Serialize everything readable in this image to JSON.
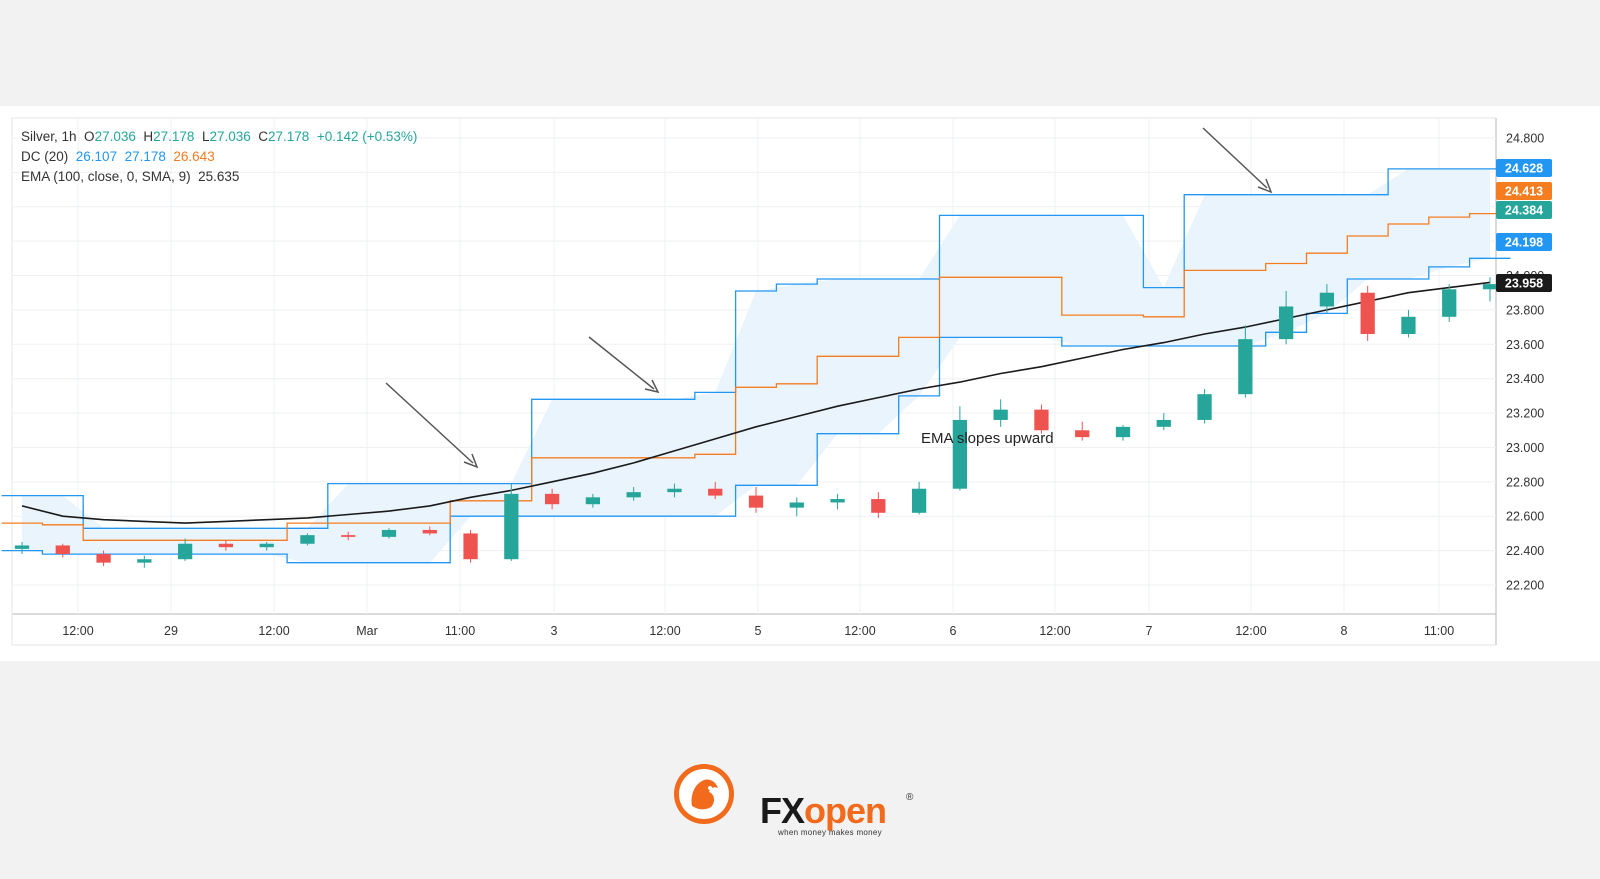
{
  "legend": {
    "symbol": "Silver, 1h",
    "o_label": "O",
    "o": "27.036",
    "h_label": "H",
    "h": "27.178",
    "l_label": "L",
    "l": "27.036",
    "c_label": "C",
    "c": "27.178",
    "change": "+0.142 (+0.53%)",
    "dc_label": "DC (20)",
    "dc_lower": "26.107",
    "dc_upper": "27.178",
    "dc_basis": "26.643",
    "ema_label": "EMA (100, close, 0, SMA, 9)",
    "ema_value": "25.635"
  },
  "annotation": "EMA slopes upward",
  "logo": {
    "brand_fx": "FX",
    "brand_open": "open",
    "tagline": "when money makes money",
    "reg": "®"
  },
  "colors": {
    "up": "#26a69a",
    "down": "#ef5350",
    "channel": "#2196f3",
    "basis": "#f57c1f",
    "ema": "#1a1a1a",
    "fill": "#eaf4fc"
  },
  "chart_data": {
    "type": "candlestick",
    "y_ticks": [
      "24.800",
      "24.600",
      "24.400",
      "24.200",
      "24.000",
      "23.800",
      "23.600",
      "23.400",
      "23.200",
      "23.000",
      "22.800",
      "22.600",
      "22.400",
      "22.200"
    ],
    "ylim": [
      22.0,
      24.8
    ],
    "x_ticks": [
      "12:00",
      "29",
      "12:00",
      "Mar",
      "11:00",
      "3",
      "12:00",
      "5",
      "12:00",
      "6",
      "12:00",
      "7",
      "12:00",
      "8",
      "11:00"
    ],
    "price_labels": [
      {
        "text": "24.628",
        "color": "#2196f3",
        "value": 24.628
      },
      {
        "text": "24.413",
        "color": "#f57c1f",
        "value": 24.413
      },
      {
        "text": "24.384",
        "color": "#26a69a",
        "value": 24.384
      },
      {
        "text": "24.198",
        "color": "#2196f3",
        "value": 24.198
      },
      {
        "text": "23.958",
        "color": "#1a1a1a",
        "value": 23.958
      }
    ],
    "dc_upper": [
      22.72,
      22.72,
      22.53,
      22.53,
      22.53,
      22.53,
      22.53,
      22.53,
      22.79,
      22.79,
      22.79,
      22.79,
      22.79,
      23.28,
      23.28,
      23.28,
      23.28,
      23.32,
      23.91,
      23.95,
      23.98,
      23.98,
      23.98,
      24.35,
      24.35,
      24.35,
      24.35,
      24.35,
      23.93,
      24.47,
      24.47,
      24.47,
      24.47,
      24.47,
      24.62,
      24.62,
      24.62
    ],
    "dc_lower": [
      22.4,
      22.38,
      22.38,
      22.38,
      22.38,
      22.38,
      22.38,
      22.33,
      22.33,
      22.33,
      22.33,
      22.6,
      22.6,
      22.6,
      22.6,
      22.6,
      22.6,
      22.6,
      22.78,
      22.78,
      23.08,
      23.08,
      23.3,
      23.64,
      23.64,
      23.64,
      23.59,
      23.59,
      23.59,
      23.59,
      23.59,
      23.67,
      23.78,
      23.98,
      23.98,
      24.05,
      24.1
    ],
    "dc_basis": [
      22.56,
      22.55,
      22.46,
      22.46,
      22.46,
      22.46,
      22.46,
      22.56,
      22.56,
      22.56,
      22.56,
      22.69,
      22.69,
      22.94,
      22.94,
      22.94,
      22.94,
      22.96,
      23.35,
      23.37,
      23.53,
      23.53,
      23.64,
      23.99,
      23.99,
      23.99,
      23.77,
      23.77,
      23.76,
      24.03,
      24.03,
      24.07,
      24.13,
      24.23,
      24.3,
      24.34,
      24.36
    ],
    "ema": [
      22.66,
      22.6,
      22.58,
      22.57,
      22.56,
      22.57,
      22.58,
      22.59,
      22.61,
      22.63,
      22.66,
      22.71,
      22.75,
      22.8,
      22.85,
      22.91,
      22.98,
      23.05,
      23.12,
      23.18,
      23.24,
      23.29,
      23.34,
      23.38,
      23.43,
      23.47,
      23.52,
      23.57,
      23.61,
      23.66,
      23.7,
      23.75,
      23.8,
      23.85,
      23.9,
      23.93,
      23.96
    ],
    "candles": [
      [
        22.41,
        22.45,
        22.38,
        22.43
      ],
      [
        22.43,
        22.44,
        22.36,
        22.38
      ],
      [
        22.38,
        22.4,
        22.31,
        22.33
      ],
      [
        22.33,
        22.37,
        22.3,
        22.35
      ],
      [
        22.35,
        22.47,
        22.34,
        22.44
      ],
      [
        22.44,
        22.46,
        22.4,
        22.42
      ],
      [
        22.42,
        22.45,
        22.4,
        22.44
      ],
      [
        22.44,
        22.5,
        22.43,
        22.49
      ],
      [
        22.49,
        22.51,
        22.46,
        22.48
      ],
      [
        22.48,
        22.53,
        22.47,
        22.52
      ],
      [
        22.52,
        22.54,
        22.49,
        22.5
      ],
      [
        22.5,
        22.52,
        22.33,
        22.35
      ],
      [
        22.35,
        22.79,
        22.34,
        22.73
      ],
      [
        22.73,
        22.76,
        22.64,
        22.67
      ],
      [
        22.67,
        22.73,
        22.65,
        22.71
      ],
      [
        22.71,
        22.77,
        22.69,
        22.74
      ],
      [
        22.74,
        22.79,
        22.71,
        22.76
      ],
      [
        22.76,
        22.8,
        22.7,
        22.72
      ],
      [
        22.72,
        22.77,
        22.62,
        22.65
      ],
      [
        22.65,
        22.71,
        22.6,
        22.68
      ],
      [
        22.68,
        22.73,
        22.64,
        22.7
      ],
      [
        22.7,
        22.74,
        22.59,
        22.62
      ],
      [
        22.62,
        22.8,
        22.61,
        22.76
      ],
      [
        22.76,
        23.24,
        22.75,
        23.16
      ],
      [
        23.16,
        23.28,
        23.12,
        23.22
      ],
      [
        23.22,
        23.25,
        23.08,
        23.1
      ],
      [
        23.1,
        23.15,
        23.04,
        23.06
      ],
      [
        23.06,
        23.13,
        23.04,
        23.12
      ],
      [
        23.12,
        23.2,
        23.1,
        23.16
      ],
      [
        23.16,
        23.34,
        23.14,
        23.31
      ],
      [
        23.31,
        23.71,
        23.29,
        23.63
      ],
      [
        23.63,
        23.91,
        23.6,
        23.82
      ],
      [
        23.82,
        23.95,
        23.78,
        23.9
      ],
      [
        23.9,
        23.94,
        23.62,
        23.66
      ],
      [
        23.66,
        23.8,
        23.64,
        23.76
      ],
      [
        23.76,
        23.95,
        23.73,
        23.92
      ],
      [
        23.92,
        23.99,
        23.85,
        23.95
      ]
    ]
  }
}
